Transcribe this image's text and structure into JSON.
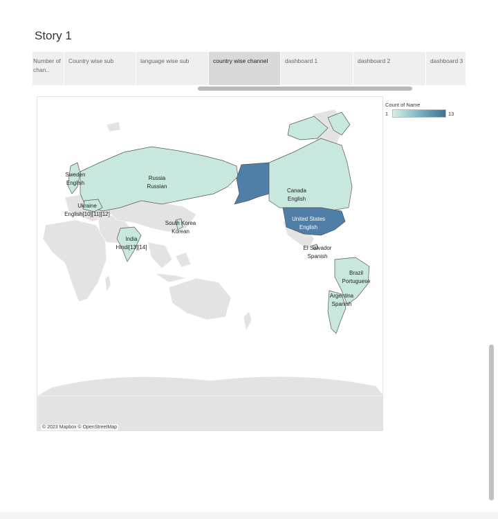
{
  "story": {
    "title": "Story 1",
    "tabs": [
      {
        "label": "Number of chan..",
        "active": false
      },
      {
        "label": "Country wise sub",
        "active": false
      },
      {
        "label": "language wise sub",
        "active": false
      },
      {
        "label": "country wise channel",
        "active": true
      },
      {
        "label": "dashboard 1",
        "active": false
      },
      {
        "label": "dashboard 2",
        "active": false
      },
      {
        "label": "dashboard 3",
        "active": false
      }
    ]
  },
  "map": {
    "attribution": "© 2023 Mapbox © OpenStreetMap",
    "labels": [
      {
        "country": "Sweden",
        "language": "English"
      },
      {
        "country": "Russia",
        "language": "Russian"
      },
      {
        "country": "Ukraine",
        "language": "English[10][11][12]"
      },
      {
        "country": "South Korea",
        "language": "Korean"
      },
      {
        "country": "India",
        "language": "Hindi[13][14]"
      },
      {
        "country": "Canada",
        "language": "English"
      },
      {
        "country": "United States",
        "language": "English"
      },
      {
        "country": "El Salvador",
        "language": "Spanish"
      },
      {
        "country": "Brazil",
        "language": "Portuguese"
      },
      {
        "country": "Argentina",
        "language": "Spanish"
      }
    ]
  },
  "legend": {
    "title": "Count of Name",
    "min": "1",
    "max": "13",
    "colors": {
      "low": "#d7efea",
      "mid": "#7ab5bf",
      "high": "#3f6f97"
    }
  },
  "colors": {
    "base_land": "#e3e3e3",
    "ocean": "#ffffff",
    "highlight_low": "#c7e7df",
    "highlight_high": "#4f7ea6"
  }
}
